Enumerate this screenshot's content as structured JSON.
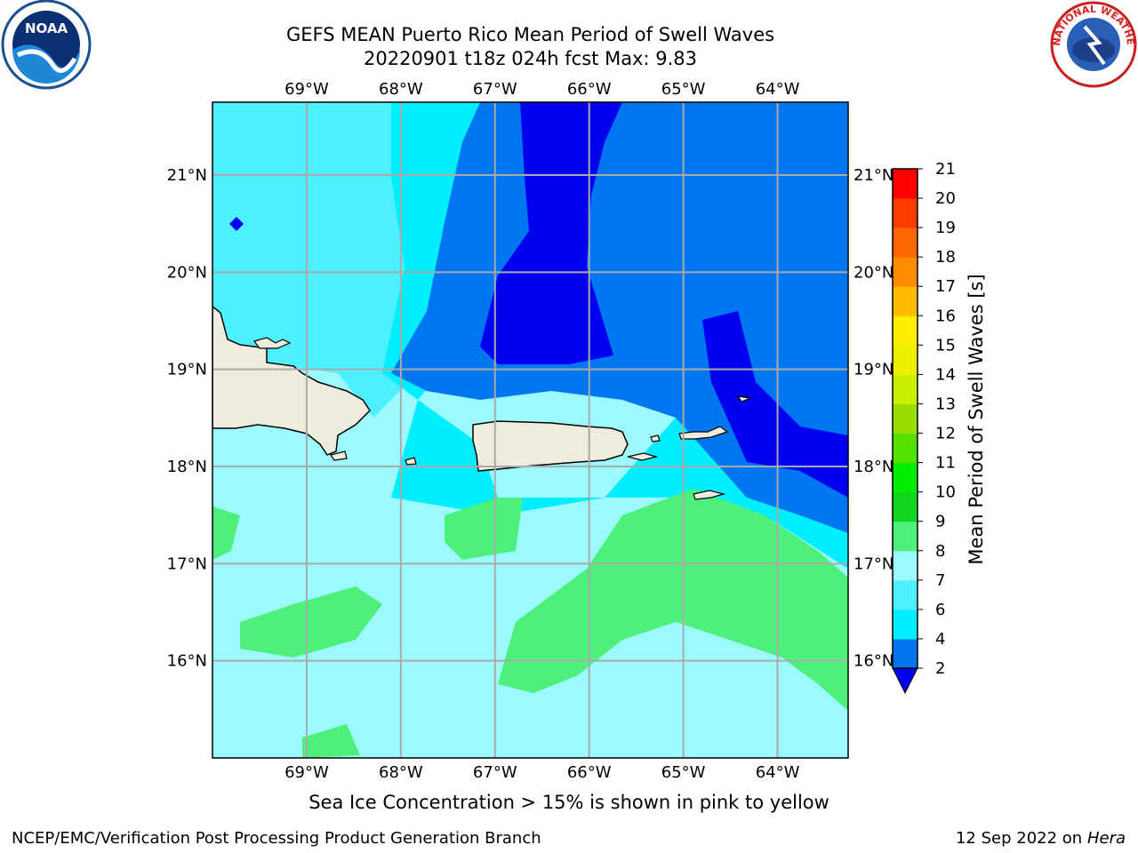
{
  "header": {
    "title_line1": "GEFS MEAN Puerto Rico Mean Period of Swell Waves",
    "title_line2": "20220901 t18z 024h fcst   Max: 9.83"
  },
  "map": {
    "lon_labels": [
      "69°W",
      "68°W",
      "67°W",
      "66°W",
      "65°W",
      "64°W"
    ],
    "lat_labels": [
      "21°N",
      "20°N",
      "19°N",
      "18°N",
      "17°N",
      "16°N"
    ],
    "lon_values": [
      -69,
      -68,
      -67,
      -66,
      -65,
      -64
    ],
    "lat_values": [
      21,
      20,
      19,
      18,
      17,
      16
    ],
    "extent": {
      "lon_min": -70,
      "lon_max": -63.25,
      "lat_min": 15.0,
      "lat_max": 21.75
    }
  },
  "colorbar": {
    "label": "Mean Period of Swell Waves [s]",
    "ticks": [
      "2",
      "4",
      "6",
      "7",
      "8",
      "9",
      "10",
      "11",
      "12",
      "13",
      "14",
      "15",
      "16",
      "17",
      "18",
      "19",
      "20",
      "21"
    ],
    "colors": [
      "#0000ee",
      "#0077f0",
      "#00eeff",
      "#4ef0ff",
      "#9cf9ff",
      "#4df07a",
      "#13d41f",
      "#00ee00",
      "#55e000",
      "#99dd00",
      "#c8ee00",
      "#eeee00",
      "#ffee00",
      "#ffbb00",
      "#ff8c00",
      "#ff6600",
      "#ff3c00",
      "#ff0000"
    ]
  },
  "colors": {
    "land": "#eeecdc",
    "band_2_4": "#0000ee",
    "band_4_6": "#0077f0",
    "band_6_7": "#00eeff",
    "band_7_8": "#4ef0ff",
    "band_8_9": "#9cf9ff",
    "band_9_10": "#4df07a"
  },
  "logos": {
    "noaa_text": "NOAA",
    "nws_text": "NATIONAL WEATHER SERVICE"
  },
  "footer": {
    "subtitle": "Sea Ice Concentration > 15% is shown in pink to yellow",
    "credit": "NCEP/EMC/Verification Post Processing Product Generation Branch",
    "date": "12 Sep 2022 on",
    "machine": "Hera"
  }
}
